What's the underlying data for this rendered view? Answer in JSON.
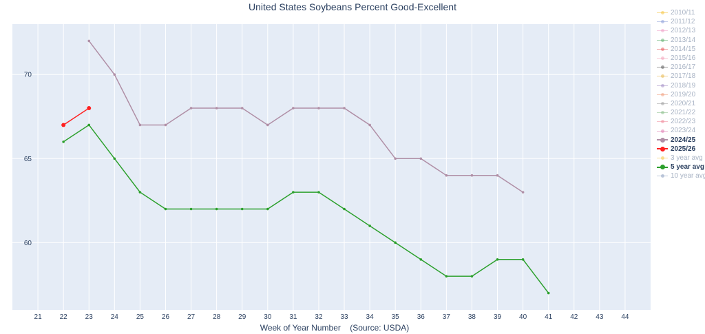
{
  "chart_data": {
    "type": "line",
    "title": "United States Soybeans Percent Good-Excellent",
    "xlabel": "Week of Year Number    (Source: USDA)",
    "ylabel": "",
    "xlim": [
      20,
      45
    ],
    "ylim": [
      56,
      73
    ],
    "xticks": [
      21,
      22,
      23,
      24,
      25,
      26,
      27,
      28,
      29,
      30,
      31,
      32,
      33,
      34,
      35,
      36,
      37,
      38,
      39,
      40,
      41,
      42,
      43,
      44
    ],
    "yticks": [
      60,
      65,
      70
    ],
    "grid": true,
    "legend_position": "right",
    "series": [
      {
        "name": "2010/11",
        "color": "#f5c542",
        "visible": false,
        "x": [],
        "values": []
      },
      {
        "name": "2011/12",
        "color": "#8c9fd9",
        "visible": false,
        "x": [],
        "values": []
      },
      {
        "name": "2012/13",
        "color": "#f0a0c8",
        "visible": false,
        "x": [],
        "values": []
      },
      {
        "name": "2013/14",
        "color": "#5fae6e",
        "visible": false,
        "x": [],
        "values": []
      },
      {
        "name": "2014/15",
        "color": "#e8555a",
        "visible": false,
        "x": [],
        "values": []
      },
      {
        "name": "2015/16",
        "color": "#f2a0b8",
        "visible": false,
        "x": [],
        "values": []
      },
      {
        "name": "2016/17",
        "color": "#555555",
        "visible": false,
        "x": [],
        "values": []
      },
      {
        "name": "2017/18",
        "color": "#e8b64a",
        "visible": false,
        "x": [],
        "values": []
      },
      {
        "name": "2018/19",
        "color": "#a48ec7",
        "visible": false,
        "x": [],
        "values": []
      },
      {
        "name": "2019/20",
        "color": "#f0a080",
        "visible": false,
        "x": [],
        "values": []
      },
      {
        "name": "2020/21",
        "color": "#a0a0a0",
        "visible": false,
        "x": [],
        "values": []
      },
      {
        "name": "2021/22",
        "color": "#8cc08c",
        "visible": false,
        "x": [],
        "values": []
      },
      {
        "name": "2022/23",
        "color": "#f08c9c",
        "visible": false,
        "x": [],
        "values": []
      },
      {
        "name": "2023/24",
        "color": "#e07ab0",
        "visible": false,
        "x": [],
        "values": []
      },
      {
        "name": "2024/25",
        "color": "#b08fa6",
        "visible": true,
        "highlight": true,
        "x": [
          23,
          24,
          25,
          26,
          27,
          28,
          29,
          30,
          31,
          32,
          33,
          34,
          35,
          36,
          37,
          38,
          39,
          40
        ],
        "values": [
          72,
          70,
          67,
          67,
          68,
          68,
          68,
          67,
          68,
          68,
          68,
          67,
          65,
          65,
          64,
          64,
          64,
          63
        ]
      },
      {
        "name": "2025/26",
        "color": "#ff2020",
        "visible": true,
        "highlight": true,
        "x": [
          22,
          23
        ],
        "values": [
          67,
          68
        ]
      },
      {
        "name": "3 year avg",
        "color": "#f5c542",
        "visible": false,
        "x": [],
        "values": []
      },
      {
        "name": "5 year avg",
        "color": "#2ca02c",
        "visible": true,
        "highlight": true,
        "x": [
          22,
          23,
          24,
          25,
          26,
          27,
          28,
          29,
          30,
          31,
          32,
          33,
          34,
          35,
          36,
          37,
          38,
          39,
          40,
          41
        ],
        "values": [
          66,
          67,
          65,
          63,
          62,
          62,
          62,
          62,
          62,
          63,
          63,
          62,
          61,
          60,
          59,
          58,
          58,
          59,
          59,
          57
        ]
      },
      {
        "name": "10 year avg",
        "color": "#8c9fbf",
        "visible": false,
        "x": [],
        "values": []
      }
    ]
  }
}
